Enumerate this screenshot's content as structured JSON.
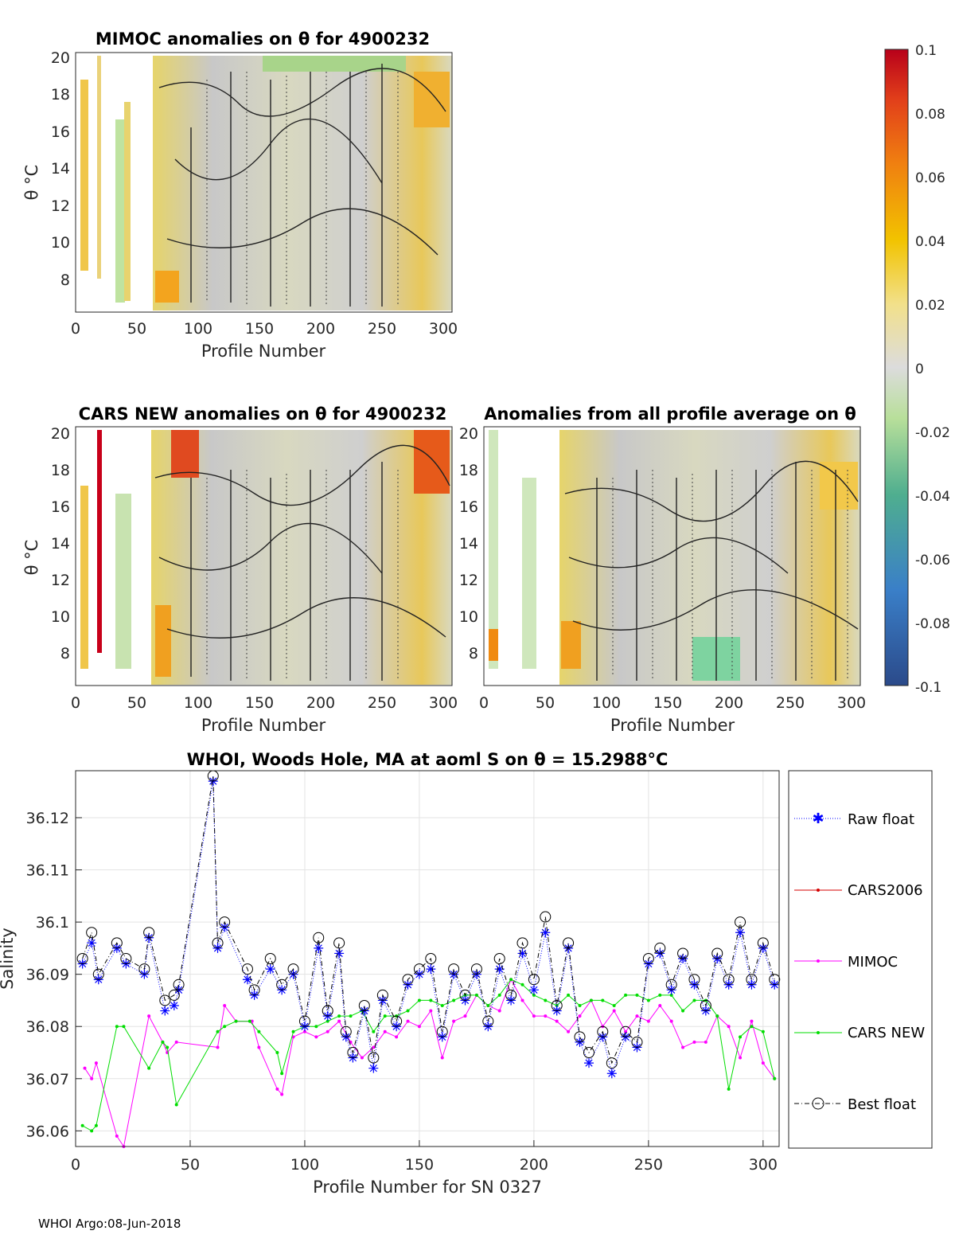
{
  "colors": {
    "raw": "#0000ff",
    "cars2006": "#d40000",
    "mimoc": "#ff00ff",
    "carsnew": "#00dd00",
    "best": "#000000",
    "grid": "#e3e3e3"
  },
  "anomaly_panels": [
    {
      "title": "MIMOC anomalies on θ  for 4900232",
      "xlabel": "Profile Number",
      "ylabel": "θ °C",
      "xticks": [
        "0",
        "50",
        "100",
        "150",
        "200",
        "250",
        "300"
      ],
      "yticks": [
        "20",
        "18",
        "16",
        "14",
        "12",
        "10",
        "8"
      ],
      "xlim": [
        0,
        306
      ],
      "ylim": [
        6.3,
        20.3
      ]
    },
    {
      "title": "CARS NEW anomalies on θ for 4900232",
      "xlabel": "Profile Number",
      "ylabel": "θ °C",
      "xticks": [
        "0",
        "50",
        "100",
        "150",
        "200",
        "250",
        "300"
      ],
      "yticks": [
        "20",
        "18",
        "16",
        "14",
        "12",
        "10",
        "8"
      ],
      "xlim": [
        0,
        306
      ],
      "ylim": [
        6.3,
        20.3
      ]
    },
    {
      "title": "Anomalies from all profile average on θ",
      "xlabel": "Profile Number",
      "ylabel": "",
      "xticks": [
        "0",
        "50",
        "100",
        "150",
        "200",
        "250",
        "300"
      ],
      "yticks": [
        "20",
        "18",
        "16",
        "14",
        "12",
        "10",
        "8"
      ],
      "xlim": [
        0,
        306
      ],
      "ylim": [
        6.3,
        20.3
      ]
    }
  ],
  "colorbar": {
    "ticks": [
      "0.1",
      "0.08",
      "0.06",
      "0.04",
      "0.02",
      "0",
      "-0.02",
      "-0.04",
      "-0.06",
      "-0.08",
      "-0.1"
    ],
    "range": [
      -0.1,
      0.1
    ]
  },
  "chart_data": {
    "type": "line",
    "title": "WHOI, Woods Hole, MA at aoml S on θ = 15.2988°C",
    "xlabel": "Profile Number for SN 0327",
    "ylabel": "Salinity",
    "xlim": [
      0,
      307
    ],
    "ylim": [
      36.057,
      36.129
    ],
    "xticks": [
      "0",
      "50",
      "100",
      "150",
      "200",
      "250",
      "300"
    ],
    "yticks": [
      "36.12",
      "36.11",
      "36.1",
      "36.09",
      "36.08",
      "36.07",
      "36.06"
    ],
    "legend": [
      "Raw float",
      "CARS2006",
      "MIMOC",
      "CARS NEW",
      "Best float"
    ],
    "series": [
      {
        "name": "Raw float",
        "x": [
          3,
          7,
          10,
          18,
          22,
          30,
          32,
          39,
          43,
          45,
          60,
          62,
          65,
          75,
          78,
          85,
          90,
          95,
          100,
          106,
          110,
          115,
          118,
          121,
          126,
          130,
          134,
          140,
          145,
          150,
          155,
          160,
          165,
          170,
          175,
          180,
          185,
          190,
          195,
          200,
          205,
          210,
          215,
          220,
          224,
          230,
          234,
          240,
          245,
          250,
          255,
          260,
          265,
          270,
          275,
          280,
          285,
          290,
          295,
          300,
          305
        ],
        "y": [
          36.092,
          36.096,
          36.089,
          36.095,
          36.092,
          36.09,
          36.097,
          36.083,
          36.084,
          36.087,
          36.127,
          36.095,
          36.099,
          36.089,
          36.086,
          36.091,
          36.087,
          36.09,
          36.08,
          36.095,
          36.082,
          36.094,
          36.078,
          36.074,
          36.083,
          36.072,
          36.085,
          36.08,
          36.088,
          36.09,
          36.091,
          36.078,
          36.09,
          36.085,
          36.09,
          36.08,
          36.091,
          36.085,
          36.094,
          36.087,
          36.098,
          36.083,
          36.095,
          36.077,
          36.073,
          36.078,
          36.071,
          36.078,
          36.076,
          36.092,
          36.094,
          36.087,
          36.093,
          36.088,
          36.083,
          36.093,
          36.088,
          36.098,
          36.088,
          36.095,
          36.088
        ]
      },
      {
        "name": "CARS2006",
        "x": [],
        "y": []
      },
      {
        "name": "MIMOC",
        "x": [
          4,
          7,
          9,
          18,
          21,
          32,
          38,
          40,
          44,
          62,
          65,
          70,
          77,
          80,
          88,
          90,
          95,
          100,
          105,
          110,
          115,
          120,
          125,
          130,
          135,
          140,
          145,
          150,
          155,
          160,
          165,
          170,
          175,
          180,
          185,
          190,
          195,
          200,
          205,
          210,
          215,
          220,
          225,
          230,
          235,
          240,
          245,
          250,
          255,
          260,
          265,
          270,
          275,
          280,
          285,
          290,
          295,
          300,
          305
        ],
        "y": [
          36.072,
          36.07,
          36.073,
          36.059,
          36.057,
          36.082,
          36.077,
          36.075,
          36.077,
          36.076,
          36.084,
          36.081,
          36.081,
          36.076,
          36.068,
          36.067,
          36.078,
          36.079,
          36.078,
          36.079,
          36.081,
          36.077,
          36.074,
          36.076,
          36.079,
          36.078,
          36.081,
          36.08,
          36.083,
          36.074,
          36.081,
          36.082,
          36.086,
          36.084,
          36.083,
          36.089,
          36.085,
          36.082,
          36.082,
          36.081,
          36.079,
          36.082,
          36.085,
          36.08,
          36.083,
          36.079,
          36.082,
          36.081,
          36.084,
          36.081,
          36.076,
          36.077,
          36.077,
          36.082,
          36.08,
          36.074,
          36.081,
          36.073,
          36.07
        ]
      },
      {
        "name": "CARS NEW",
        "x": [
          3,
          7,
          9,
          18,
          21,
          32,
          38,
          40,
          44,
          62,
          65,
          70,
          76,
          80,
          88,
          90,
          95,
          100,
          105,
          110,
          115,
          120,
          125,
          130,
          135,
          140,
          145,
          150,
          155,
          160,
          165,
          170,
          175,
          180,
          185,
          190,
          195,
          200,
          205,
          210,
          215,
          220,
          225,
          230,
          235,
          240,
          245,
          250,
          255,
          260,
          265,
          270,
          275,
          280,
          285,
          290,
          295,
          300,
          305
        ],
        "y": [
          36.061,
          36.06,
          36.061,
          36.08,
          36.08,
          36.072,
          36.077,
          36.076,
          36.065,
          36.079,
          36.08,
          36.081,
          36.081,
          36.079,
          36.075,
          36.071,
          36.079,
          36.08,
          36.08,
          36.081,
          36.082,
          36.082,
          36.083,
          36.079,
          36.082,
          36.082,
          36.083,
          36.085,
          36.085,
          36.084,
          36.085,
          36.086,
          36.086,
          36.084,
          36.086,
          36.089,
          36.088,
          36.086,
          36.085,
          36.084,
          36.086,
          36.084,
          36.085,
          36.085,
          36.084,
          36.086,
          36.086,
          36.085,
          36.086,
          36.086,
          36.083,
          36.085,
          36.085,
          36.082,
          36.068,
          36.078,
          36.08,
          36.079,
          36.07
        ]
      },
      {
        "name": "Best float",
        "x": [
          3,
          7,
          10,
          18,
          22,
          30,
          32,
          39,
          43,
          45,
          60,
          62,
          65,
          75,
          78,
          85,
          90,
          95,
          100,
          106,
          110,
          115,
          118,
          121,
          126,
          130,
          134,
          140,
          145,
          150,
          155,
          160,
          165,
          170,
          175,
          180,
          185,
          190,
          195,
          200,
          205,
          210,
          215,
          220,
          224,
          230,
          234,
          240,
          245,
          250,
          255,
          260,
          265,
          270,
          275,
          280,
          285,
          290,
          295,
          300,
          305
        ],
        "y": [
          36.093,
          36.098,
          36.09,
          36.096,
          36.093,
          36.091,
          36.098,
          36.085,
          36.086,
          36.088,
          36.128,
          36.096,
          36.1,
          36.091,
          36.087,
          36.093,
          36.088,
          36.091,
          36.081,
          36.097,
          36.083,
          36.096,
          36.079,
          36.075,
          36.084,
          36.074,
          36.086,
          36.081,
          36.089,
          36.091,
          36.093,
          36.079,
          36.091,
          36.086,
          36.091,
          36.081,
          36.093,
          36.086,
          36.096,
          36.089,
          36.101,
          36.084,
          36.096,
          36.078,
          36.075,
          36.079,
          36.073,
          36.079,
          36.077,
          36.093,
          36.095,
          36.088,
          36.094,
          36.089,
          36.084,
          36.094,
          36.089,
          36.1,
          36.089,
          36.096,
          36.089
        ]
      }
    ]
  },
  "footer": "WHOI Argo:08-Jun-2018"
}
